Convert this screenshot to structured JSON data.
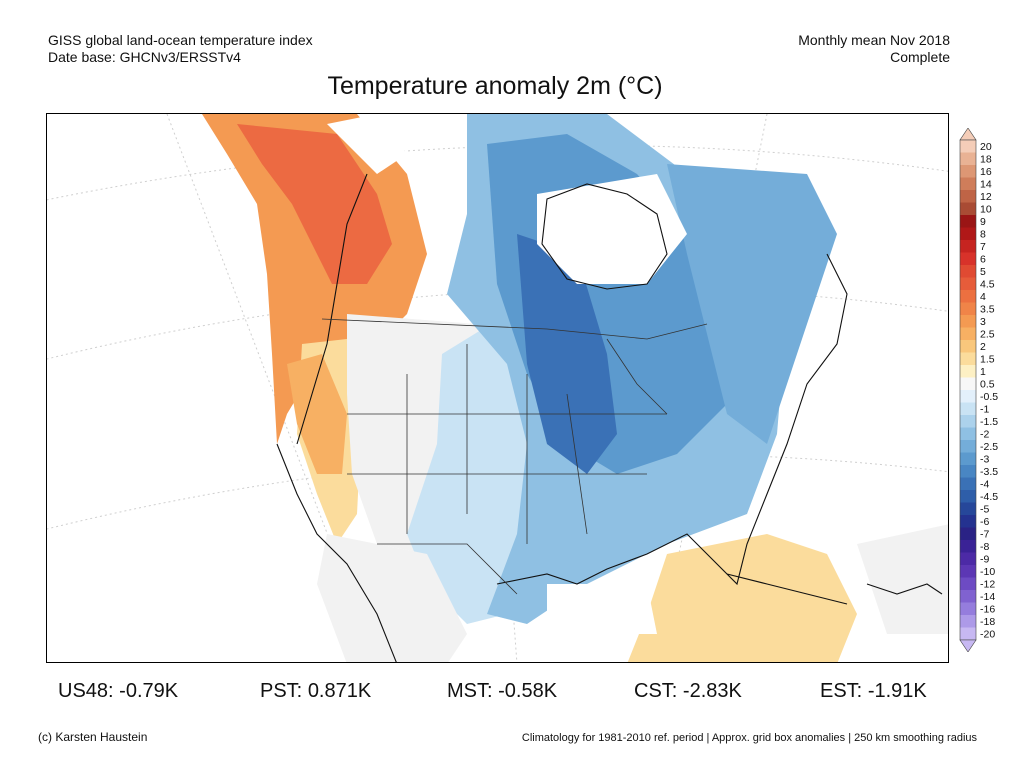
{
  "header": {
    "left_line1": "GISS global land-ocean temperature index",
    "left_line2": "Date base: GHCNv3/ERSSTv4",
    "right_line1": "Monthly mean Nov 2018",
    "right_line2": "Complete",
    "title": "Temperature anomaly 2m (°C)"
  },
  "colorbar": {
    "labels": [
      "20",
      "18",
      "16",
      "14",
      "12",
      "10",
      "9",
      "8",
      "7",
      "6",
      "5",
      "4.5",
      "4",
      "3.5",
      "3",
      "2.5",
      "2",
      "1.5",
      "1",
      "0.5",
      "-0.5",
      "-1",
      "-1.5",
      "-2",
      "-2.5",
      "-3",
      "-3.5",
      "-4",
      "-4.5",
      "-5",
      "-6",
      "-7",
      "-8",
      "-9",
      "-10",
      "-12",
      "-14",
      "-16",
      "-18",
      "-20"
    ],
    "colors": [
      "#f4cdb8",
      "#e9b294",
      "#dd9774",
      "#cf7d5a",
      "#bf6446",
      "#a94b34",
      "#9a1515",
      "#b01818",
      "#c62420",
      "#d8322a",
      "#e04a32",
      "#e65c3a",
      "#ec7040",
      "#f08448",
      "#f49a52",
      "#f7b063",
      "#f9c77c",
      "#fbdc9c",
      "#fdf0c4",
      "#f7f7f7",
      "#e3f0fb",
      "#c9e3f4",
      "#acd2ec",
      "#8fc0e3",
      "#74add9",
      "#5c9ace",
      "#4986c3",
      "#3a71b6",
      "#2e5ea9",
      "#26479a",
      "#243290",
      "#2a2285",
      "#3a2296",
      "#4c2aa6",
      "#5c37b4",
      "#6d4bc3",
      "#8062d0",
      "#957ddd",
      "#ad9ae8",
      "#c7b8f2"
    ]
  },
  "stats": [
    {
      "label": "US48:",
      "value": "-0.79K"
    },
    {
      "label": "PST:",
      "value": "0.871K"
    },
    {
      "label": "MST:",
      "value": "-0.58K"
    },
    {
      "label": "CST:",
      "value": "-2.83K"
    },
    {
      "label": "EST:",
      "value": "-1.91K"
    }
  ],
  "footer": {
    "credit": "(c) Karsten Haustein",
    "note": "Climatology for 1981-2010 ref. period | Approx. grid box anomalies | 250 km smoothing radius"
  },
  "map_colors": {
    "very_warm": "#ec6a42",
    "warm": "#f49a52",
    "mild_warm": "#fbdc9c",
    "neutral": "#f2f2f2",
    "cool": "#c9e3f4",
    "cooler": "#8fc0e3",
    "cold": "#5c9ace",
    "colder": "#3a71b6",
    "missing": "#ffffff"
  }
}
